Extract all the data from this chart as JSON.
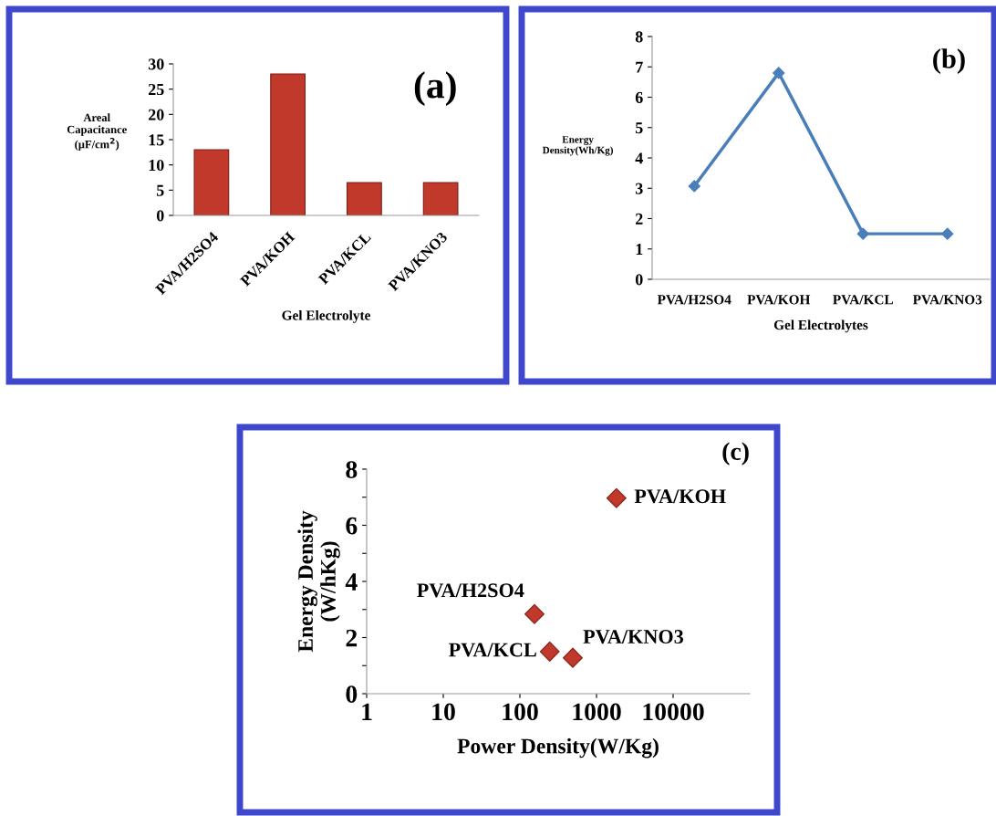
{
  "chart_data": [
    {
      "type": "bar",
      "categories": [
        "PVA/H2SO4",
        "PVA/KOH",
        "PVA/KCL",
        "PVA/KNO3"
      ],
      "values": [
        13,
        28,
        6.5,
        6.5
      ],
      "color": "#c0392b",
      "ylim": [
        0,
        30
      ],
      "yticks": [
        0,
        5,
        10,
        15,
        20,
        25,
        30
      ],
      "xlabel": "Gel Electrolyte",
      "ylabel": "Areal\nCapacitance\n(µF/cm$^{2}$)",
      "annotations": [
        "(a)"
      ],
      "grid": false
    },
    {
      "type": "line",
      "categories": [
        "PVA/H2SO4",
        "PVA/KOH",
        "PVA/KCL",
        "PVA/KNO3"
      ],
      "values": [
        3.07,
        6.8,
        1.5,
        1.5
      ],
      "color": "#4a7ebb",
      "marker": "diamond",
      "ylim": [
        0,
        8
      ],
      "yticks": [
        0,
        1,
        2,
        3,
        4,
        5,
        6,
        7,
        8
      ],
      "xlabel": "Gel Electrolytes",
      "ylabel": "Energy\nDensity(Wh/Kg)",
      "annotations": [
        "(b)"
      ],
      "grid": false
    },
    {
      "type": "scatter",
      "x": [
        155,
        1820,
        245,
        490
      ],
      "values": [
        2.84,
        6.97,
        1.5,
        1.28
      ],
      "color": "#c0392b",
      "marker": "diamond",
      "log": "x",
      "xlim": [
        1,
        100000
      ],
      "xticks": [
        1,
        10,
        100,
        1000,
        10000
      ],
      "ylim": [
        0,
        8
      ],
      "yticks": [
        0,
        {
          "value": 1,
          "label": null
        },
        2,
        {
          "value": 3,
          "label": null
        },
        4,
        {
          "value": 5,
          "label": null
        },
        6,
        {
          "value": 7,
          "label": null
        },
        8
      ],
      "xlabel": "Power Density(W/Kg)",
      "ylabel": "Energy Density\n(W/hKg)",
      "grid": false,
      "annotations": [
        {
          "text": "PVA/H2SO4",
          "x": 155,
          "y": 2.84
        },
        {
          "text": "PVA/KOH",
          "x": 1820,
          "y": 6.97
        },
        {
          "text": "PVA/KCL",
          "x": 245,
          "y": 1.5
        },
        {
          "text": "PVA/KNO3",
          "x": 490,
          "y": 1.28
        },
        "(c)"
      ]
    }
  ]
}
